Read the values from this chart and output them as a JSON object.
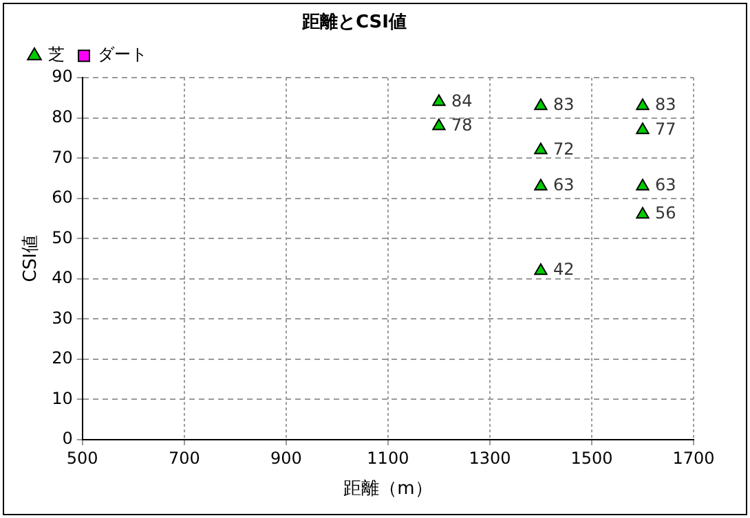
{
  "chart_data": {
    "type": "scatter",
    "title": "距離とCSI値",
    "xlabel": "距離（m）",
    "ylabel": "CSI値",
    "series": [
      {
        "name": "芝",
        "color": "#00cc00",
        "marker": "triangle",
        "x": [
          1200,
          1200,
          1400,
          1400,
          1400,
          1400,
          1600,
          1600,
          1600,
          1600
        ],
        "values": [
          84,
          78,
          83,
          72,
          63,
          42,
          83,
          77,
          63,
          56
        ]
      },
      {
        "name": "ダート",
        "color": "#ff00ff",
        "marker": "square"
      }
    ],
    "xlim": [
      500,
      1700
    ],
    "xticks": [
      500,
      700,
      900,
      1100,
      1300,
      1500,
      1700
    ],
    "ylim": [
      0,
      90
    ],
    "yticks": [
      0,
      10,
      20,
      30,
      40,
      50,
      60,
      70,
      80,
      90
    ],
    "grid": true,
    "legend": "top left",
    "data_labels": true
  }
}
